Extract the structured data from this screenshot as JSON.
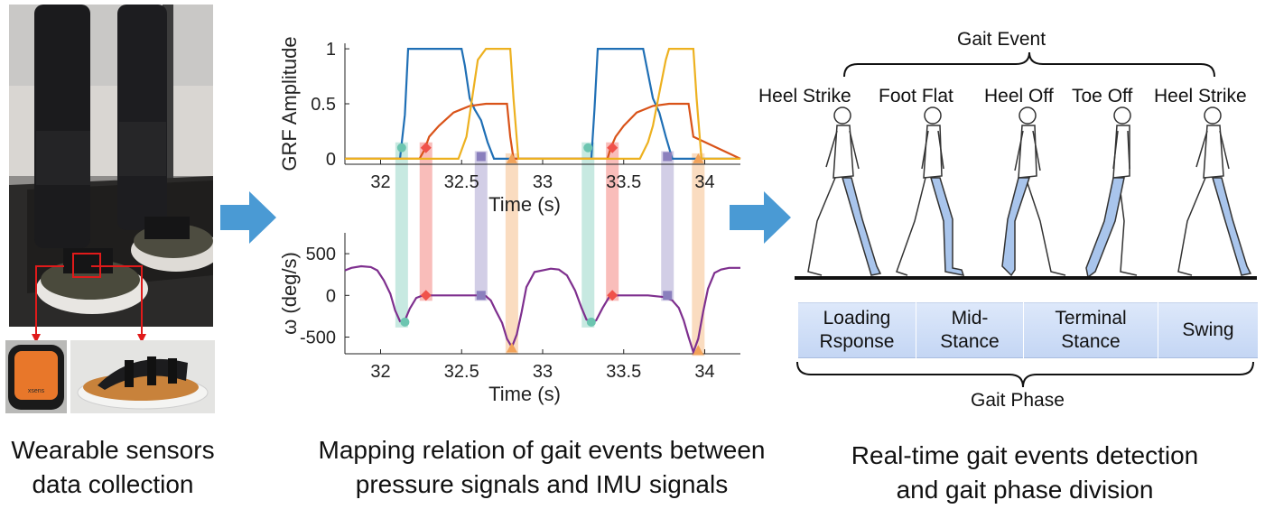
{
  "panels": {
    "left": {
      "caption_line1": "Wearable sensors",
      "caption_line2": "data collection",
      "sensor_brand": "xsens"
    },
    "middle": {
      "caption_line1": "Mapping relation of gait events between",
      "caption_line2": "pressure signals and IMU signals"
    },
    "right": {
      "caption_line1": "Real-time gait events detection",
      "caption_line2": "and gait phase division",
      "gait_event_title": "Gait Event",
      "gait_phase_title": "Gait Phase",
      "events": [
        "Heel Strike",
        "Foot Flat",
        "Heel Off",
        "Toe Off",
        "Heel Strike"
      ],
      "phases": [
        "Loading\nRsponse",
        "Mid-\nStance",
        "Terminal\nStance",
        "Swing"
      ]
    }
  },
  "colors": {
    "arrow": "#4a9ad4",
    "leg_highlight": "#a9c5ec",
    "phase_bar": "#cfdef6"
  },
  "chart_data": [
    {
      "type": "line",
      "title": "",
      "ylabel": "GRF Amplitude",
      "xlabel": "Time (s)",
      "xlim": [
        31.78,
        34.22
      ],
      "ylim": [
        -0.05,
        1.05
      ],
      "xticks": [
        "32",
        "32.5",
        "33",
        "33.5",
        "34"
      ],
      "yticks": [
        "0",
        "0.5",
        "1"
      ],
      "series": [
        {
          "color": "#1f6fb5",
          "x": [
            31.78,
            32.12,
            32.15,
            32.17,
            32.2,
            32.5,
            32.52,
            32.55,
            32.58,
            32.62,
            32.66,
            32.7,
            33.3,
            33.32,
            33.34,
            33.36,
            33.62,
            33.64,
            33.68,
            33.72,
            33.76,
            33.8,
            34.22
          ],
          "values": [
            0,
            0,
            0.4,
            1,
            1,
            1,
            0.85,
            0.55,
            0.45,
            0.35,
            0.15,
            0,
            0,
            0.45,
            1,
            1,
            1,
            0.85,
            0.55,
            0.42,
            0.2,
            0,
            0
          ]
        },
        {
          "color": "#d95319",
          "x": [
            31.78,
            32.24,
            32.27,
            32.3,
            32.36,
            32.45,
            32.55,
            32.65,
            32.78,
            32.8,
            32.82,
            33.4,
            33.42,
            33.45,
            33.5,
            33.58,
            33.68,
            33.78,
            33.9,
            33.93,
            34.22
          ],
          "values": [
            0,
            0,
            0.08,
            0.2,
            0.3,
            0.42,
            0.48,
            0.5,
            0.5,
            0.2,
            0,
            0,
            0.1,
            0.2,
            0.3,
            0.42,
            0.48,
            0.5,
            0.5,
            0.2,
            0
          ]
        },
        {
          "color": "#edb120",
          "x": [
            31.78,
            32.48,
            32.53,
            32.57,
            32.6,
            32.65,
            32.8,
            32.82,
            32.85,
            33.6,
            33.65,
            33.68,
            33.72,
            33.76,
            33.78,
            33.93,
            33.95,
            33.98,
            34.22
          ],
          "values": [
            0,
            0,
            0.2,
            0.6,
            0.9,
            1,
            1,
            0.55,
            0,
            0,
            0.15,
            0.3,
            0.6,
            0.9,
            1,
            1,
            0.55,
            0,
            0
          ]
        }
      ],
      "markers": [
        {
          "x": 32.13,
          "y": 0.1,
          "color": "#6cc5b0",
          "shape": "circle"
        },
        {
          "x": 32.28,
          "y": 0.1,
          "color": "#f0524a",
          "shape": "diamond"
        },
        {
          "x": 32.62,
          "y": 0.02,
          "color": "#8a7fbd",
          "shape": "square"
        },
        {
          "x": 32.81,
          "y": 0.0,
          "color": "#f2a35a",
          "shape": "triangle"
        },
        {
          "x": 33.28,
          "y": 0.1,
          "color": "#6cc5b0",
          "shape": "circle"
        },
        {
          "x": 33.43,
          "y": 0.1,
          "color": "#f0524a",
          "shape": "diamond"
        },
        {
          "x": 33.77,
          "y": 0.02,
          "color": "#8a7fbd",
          "shape": "square"
        },
        {
          "x": 33.96,
          "y": 0.0,
          "color": "#f2a35a",
          "shape": "triangle"
        }
      ]
    },
    {
      "type": "line",
      "title": "",
      "ylabel": "ω (deg/s)",
      "xlabel": "Time (s)",
      "xlim": [
        31.78,
        34.22
      ],
      "ylim": [
        -700,
        750
      ],
      "xticks": [
        "32",
        "32.5",
        "33",
        "33.5",
        "34"
      ],
      "yticks": [
        "-500",
        "0",
        "500"
      ],
      "series": [
        {
          "color": "#7e2f8e",
          "x": [
            31.78,
            31.82,
            31.88,
            31.94,
            31.98,
            32.02,
            32.06,
            32.09,
            32.12,
            32.15,
            32.18,
            32.22,
            32.26,
            32.3,
            32.4,
            32.5,
            32.6,
            32.65,
            32.68,
            32.71,
            32.75,
            32.78,
            32.81,
            32.84,
            32.87,
            32.9,
            32.95,
            33.0,
            33.05,
            33.1,
            33.15,
            33.2,
            33.24,
            33.27,
            33.3,
            33.33,
            33.37,
            33.41,
            33.45,
            33.55,
            33.65,
            33.75,
            33.8,
            33.84,
            33.87,
            33.9,
            33.93,
            33.96,
            33.99,
            34.02,
            34.06,
            34.1,
            34.15,
            34.22
          ],
          "values": [
            300,
            330,
            350,
            340,
            300,
            180,
            20,
            -180,
            -310,
            -300,
            -160,
            -30,
            0,
            0,
            0,
            0,
            0,
            -10,
            -60,
            -180,
            -330,
            -520,
            -620,
            -470,
            -200,
            100,
            280,
            300,
            320,
            310,
            240,
            60,
            -150,
            -290,
            -320,
            -300,
            -150,
            -20,
            0,
            0,
            0,
            -20,
            -60,
            -150,
            -300,
            -500,
            -680,
            -520,
            -200,
            80,
            270,
            310,
            330,
            330
          ]
        }
      ],
      "markers": [
        {
          "x": 32.15,
          "y": -320,
          "color": "#6cc5b0",
          "shape": "circle"
        },
        {
          "x": 32.28,
          "y": 0,
          "color": "#f0524a",
          "shape": "diamond"
        },
        {
          "x": 32.62,
          "y": 0,
          "color": "#8a7fbd",
          "shape": "square"
        },
        {
          "x": 32.81,
          "y": -630,
          "color": "#f2a35a",
          "shape": "triangle"
        },
        {
          "x": 33.3,
          "y": -320,
          "color": "#6cc5b0",
          "shape": "circle"
        },
        {
          "x": 33.43,
          "y": 0,
          "color": "#f0524a",
          "shape": "diamond"
        },
        {
          "x": 33.77,
          "y": 0,
          "color": "#8a7fbd",
          "shape": "square"
        },
        {
          "x": 33.96,
          "y": -660,
          "color": "#f2a35a",
          "shape": "triangle"
        }
      ]
    }
  ]
}
